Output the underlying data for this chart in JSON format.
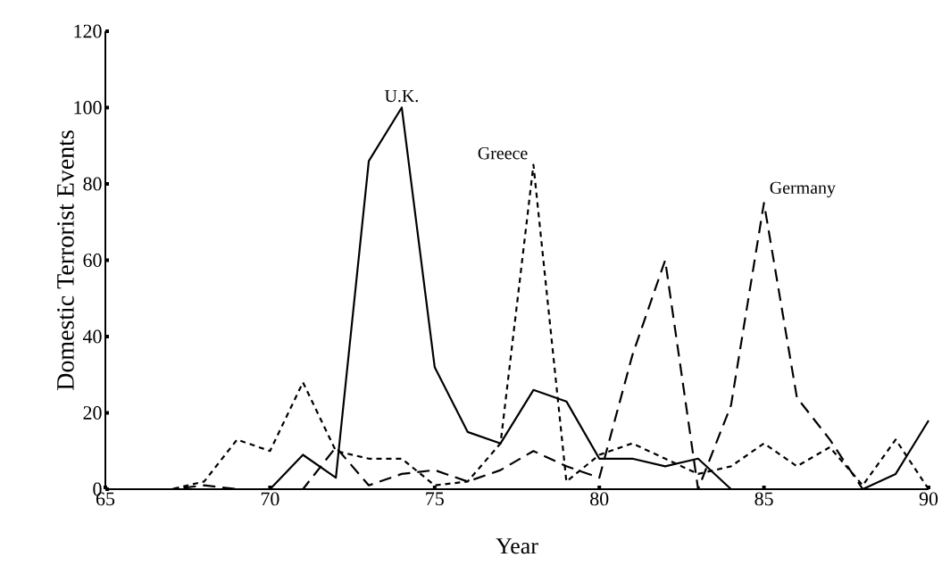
{
  "chart_data": {
    "type": "line",
    "xlabel": "Year",
    "ylabel": "Domestic Terrorist Events",
    "x": [
      65,
      66,
      67,
      68,
      69,
      70,
      71,
      72,
      73,
      74,
      75,
      76,
      77,
      78,
      79,
      80,
      81,
      82,
      83,
      84,
      85,
      86,
      87,
      88,
      89,
      90
    ],
    "xlim": [
      65,
      90
    ],
    "xticks": [
      65,
      70,
      75,
      80,
      85,
      90
    ],
    "ylim": [
      0,
      120
    ],
    "yticks": [
      0,
      20,
      40,
      60,
      80,
      100,
      120
    ],
    "grid": false,
    "legend": false,
    "marker": "none",
    "series": [
      {
        "name": "U.K.",
        "color": "#000000",
        "line_style": "solid",
        "values": [
          0,
          0,
          0,
          0,
          0,
          0,
          9,
          3,
          86,
          100,
          32,
          15,
          12,
          26,
          23,
          8,
          8,
          6,
          8,
          0,
          0,
          0,
          0,
          0,
          4,
          18
        ]
      },
      {
        "name": "Greece",
        "color": "#000000",
        "line_style": "dotted",
        "values": [
          0,
          0,
          0,
          2,
          13,
          10,
          28,
          10,
          8,
          8,
          1,
          2,
          12,
          85,
          2,
          9,
          12,
          8,
          4,
          6,
          12,
          6,
          11,
          1,
          13,
          0
        ]
      },
      {
        "name": "Germany",
        "color": "#000000",
        "line_style": "dashed",
        "values": [
          0,
          0,
          0,
          1,
          0,
          0,
          0,
          11,
          1,
          4,
          5,
          2,
          5,
          10,
          6,
          3,
          35,
          60,
          0,
          22,
          75,
          24,
          13,
          0,
          0,
          0
        ]
      }
    ]
  }
}
